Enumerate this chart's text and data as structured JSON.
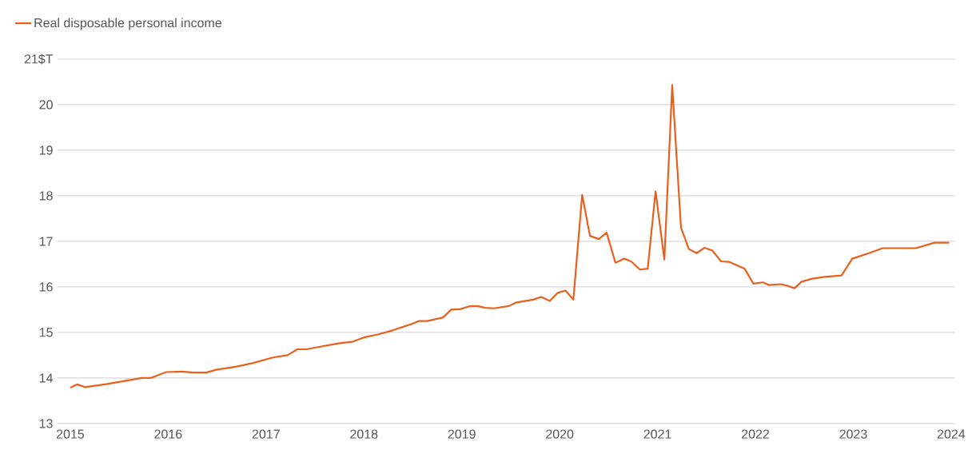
{
  "chart_data": {
    "type": "line",
    "xlim": [
      2014.87,
      2024.04
    ],
    "xticks": [
      2015,
      2016,
      2017,
      2018,
      2019,
      2020,
      2021,
      2022,
      2023,
      2024
    ],
    "ylim": [
      13,
      21
    ],
    "yticks": [
      13,
      14,
      15,
      16,
      17,
      18,
      19,
      20,
      {
        "value": 21,
        "label": "21$T"
      }
    ],
    "grid": "y",
    "legend": "top left",
    "marker": "none",
    "line_style": "solid",
    "series": [
      {
        "name": "Real disposable personal income",
        "color": "#e8601c",
        "x": [
          2015.0,
          2015.07,
          2015.15,
          2015.38,
          2015.73,
          2015.82,
          2015.98,
          2016.14,
          2016.26,
          2016.39,
          2016.49,
          2016.7,
          2016.87,
          2017.07,
          2017.22,
          2017.32,
          2017.41,
          2017.51,
          2017.74,
          2017.89,
          2018.0,
          2018.15,
          2018.3,
          2018.48,
          2018.56,
          2018.65,
          2018.81,
          2018.89,
          2018.98,
          2019.07,
          2019.16,
          2019.24,
          2019.33,
          2019.48,
          2019.56,
          2019.73,
          2019.81,
          2019.9,
          2019.98,
          2020.06,
          2020.14,
          2020.23,
          2020.31,
          2020.4,
          2020.48,
          2020.57,
          2020.66,
          2020.73,
          2020.82,
          2020.9,
          2020.98,
          2021.07,
          2021.15,
          2021.24,
          2021.32,
          2021.4,
          2021.48,
          2021.56,
          2021.65,
          2021.73,
          2021.89,
          2021.98,
          2022.08,
          2022.14,
          2022.26,
          2022.32,
          2022.4,
          2022.47,
          2022.58,
          2022.71,
          2022.88,
          2022.99,
          2023.16,
          2023.3,
          2023.64,
          2023.83,
          2023.98
        ],
        "values": [
          13.79,
          13.86,
          13.8,
          13.87,
          14.0,
          14.0,
          14.13,
          14.14,
          14.12,
          14.12,
          14.18,
          14.25,
          14.33,
          14.45,
          14.5,
          14.63,
          14.63,
          14.67,
          14.76,
          14.8,
          14.89,
          14.96,
          15.05,
          15.18,
          15.25,
          15.25,
          15.33,
          15.5,
          15.51,
          15.57,
          15.58,
          15.54,
          15.53,
          15.58,
          15.66,
          15.72,
          15.78,
          15.69,
          15.87,
          15.92,
          15.72,
          18.02,
          17.12,
          17.05,
          17.19,
          16.53,
          16.62,
          16.56,
          16.38,
          16.4,
          18.1,
          16.6,
          20.43,
          17.3,
          16.83,
          16.74,
          16.86,
          16.8,
          16.56,
          16.55,
          16.4,
          16.07,
          16.1,
          16.04,
          16.06,
          16.03,
          15.97,
          16.11,
          16.18,
          16.22,
          16.25,
          16.62,
          16.74,
          16.85,
          16.85,
          16.97,
          16.97
        ]
      }
    ]
  }
}
